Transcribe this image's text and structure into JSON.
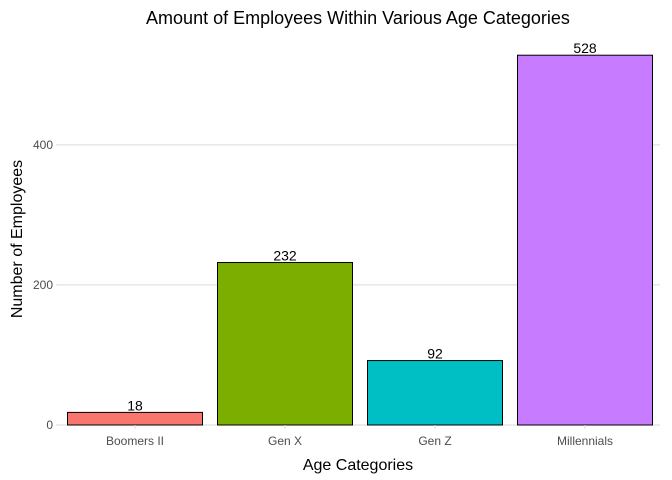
{
  "chart_data": {
    "type": "bar",
    "title": "Amount of Employees Within Various Age Categories",
    "xlabel": "Age Categories",
    "ylabel": "Number of Employees",
    "categories": [
      "Boomers II",
      "Gen X",
      "Gen Z",
      "Millennials"
    ],
    "values": [
      18,
      232,
      92,
      528
    ],
    "colors": [
      "#F8766D",
      "#7CAE00",
      "#00BFC4",
      "#C77CFF"
    ],
    "ylim": [
      0,
      554
    ],
    "yticks": [
      0,
      200,
      400
    ],
    "grid": true,
    "legend": "none"
  }
}
